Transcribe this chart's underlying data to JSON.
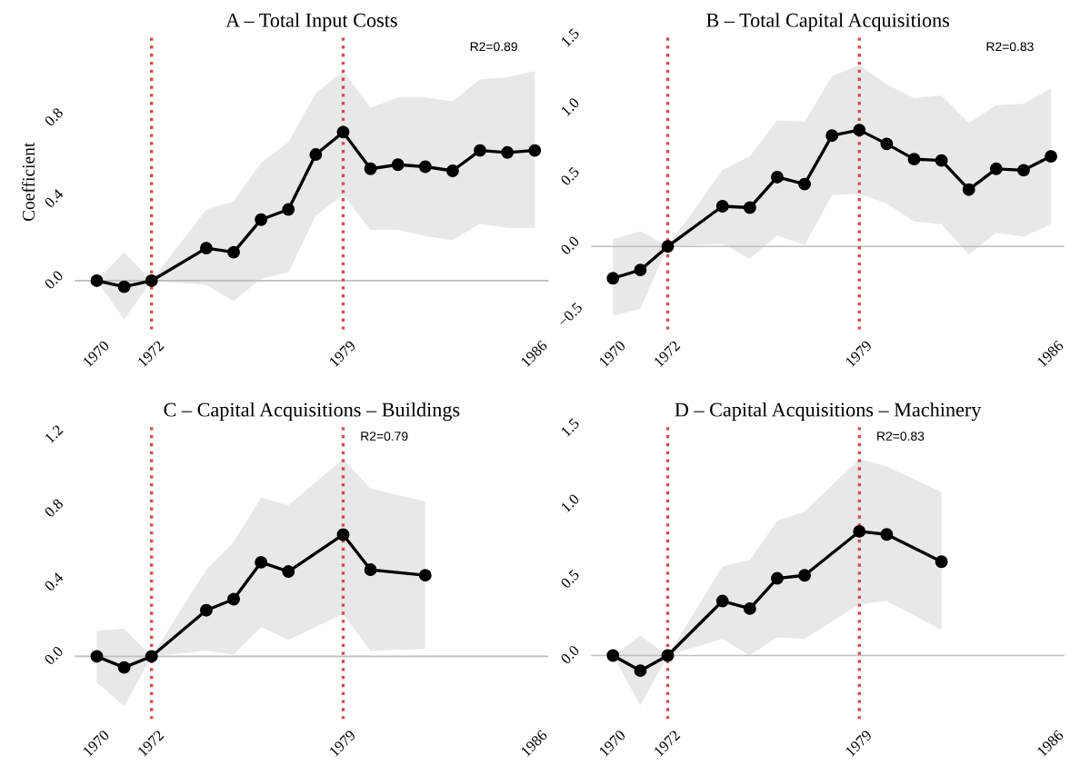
{
  "chart_data": [
    {
      "type": "line",
      "title": "A – Total Input Costs",
      "ylabel": "Coefficient",
      "annotations": [
        "R2=0.89"
      ],
      "marker": "circle",
      "line_style": "solid",
      "grid": false,
      "legend": false,
      "series": [
        {
          "color": "#000000",
          "x": [
            1970,
            1971,
            1972,
            1974,
            1975,
            1976,
            1977,
            1978,
            1979,
            1980,
            1981,
            1982,
            1983,
            1984,
            1985,
            1986
          ],
          "values": [
            0,
            -0.03,
            0,
            0.16,
            0.14,
            0.3,
            0.35,
            0.62,
            0.73,
            0.55,
            0.57,
            0.56,
            0.54,
            0.64,
            0.63,
            0.64
          ],
          "lower": [
            0,
            -0.19,
            0,
            -0.02,
            -0.1,
            0.01,
            0.04,
            0.32,
            0.42,
            0.25,
            0.25,
            0.22,
            0.2,
            0.28,
            0.26,
            0.26
          ],
          "upper": [
            0,
            0.14,
            0,
            0.35,
            0.39,
            0.58,
            0.68,
            0.92,
            1.03,
            0.85,
            0.9,
            0.9,
            0.88,
            0.99,
            1.0,
            1.03
          ]
        }
      ],
      "xlim": [
        1969.2,
        1986.5
      ],
      "xticks": [
        1970,
        1972,
        1979,
        1986
      ],
      "ylim": [
        -0.24,
        1.21
      ],
      "yticks": [
        {
          "value": 0,
          "label": "0.0"
        },
        {
          "value": 0.4,
          "label": "0.4"
        },
        {
          "value": 0.8,
          "label": "0.8"
        }
      ],
      "ref_lines": [
        {
          "axis": "x",
          "value": 1972,
          "color": "#d24b4b",
          "line_style": "dotted"
        },
        {
          "axis": "x",
          "value": 1979,
          "color": "#d24b4b",
          "line_style": "dotted"
        },
        {
          "axis": "y",
          "value": 0,
          "color": "#bdbdbd",
          "line_style": "solid"
        }
      ]
    },
    {
      "type": "line",
      "title": "B – Total Capital Acquisitions",
      "annotations": [
        "R2=0.83"
      ],
      "marker": "circle",
      "line_style": "solid",
      "grid": false,
      "legend": false,
      "series": [
        {
          "color": "#000000",
          "x": [
            1970,
            1971,
            1972,
            1974,
            1975,
            1976,
            1977,
            1978,
            1979,
            1980,
            1981,
            1982,
            1983,
            1984,
            1985,
            1986
          ],
          "values": [
            -0.23,
            -0.17,
            0,
            0.29,
            0.28,
            0.5,
            0.45,
            0.8,
            0.84,
            0.74,
            0.63,
            0.62,
            0.41,
            0.56,
            0.55,
            0.65
          ],
          "lower": [
            -0.5,
            -0.45,
            0,
            0.02,
            -0.09,
            0.08,
            0.01,
            0.37,
            0.38,
            0.31,
            0.18,
            0.16,
            -0.06,
            0.1,
            0.07,
            0.16
          ],
          "upper": [
            0.05,
            0.11,
            0,
            0.55,
            0.65,
            0.91,
            0.9,
            1.23,
            1.31,
            1.17,
            1.07,
            1.09,
            0.89,
            1.02,
            1.03,
            1.14
          ]
        }
      ],
      "xlim": [
        1969.2,
        1986.5
      ],
      "xticks": [
        1970,
        1972,
        1979,
        1986
      ],
      "ylim": [
        -0.6,
        1.53
      ],
      "yticks": [
        {
          "value": -0.5,
          "label": "−0.5"
        },
        {
          "value": 0,
          "label": "0.0"
        },
        {
          "value": 0.5,
          "label": "0.5"
        },
        {
          "value": 1,
          "label": "1.0"
        },
        {
          "value": 1.5,
          "label": "1.5"
        }
      ],
      "ref_lines": [
        {
          "axis": "x",
          "value": 1972,
          "color": "#d24b4b",
          "line_style": "dotted"
        },
        {
          "axis": "x",
          "value": 1979,
          "color": "#d24b4b",
          "line_style": "dotted"
        },
        {
          "axis": "y",
          "value": 0,
          "color": "#bdbdbd",
          "line_style": "solid"
        }
      ]
    },
    {
      "type": "line",
      "title": "C – Capital Acquisitions – Buildings",
      "annotations": [
        "R2=0.79"
      ],
      "marker": "circle",
      "line_style": "solid",
      "grid": false,
      "legend": false,
      "series": [
        {
          "color": "#000000",
          "x": [
            1970,
            1971,
            1972,
            1974,
            1975,
            1976,
            1977,
            1979,
            1980,
            1982
          ],
          "values": [
            0,
            -0.06,
            0,
            0.25,
            0.31,
            0.51,
            0.46,
            0.66,
            0.47,
            0.44
          ],
          "lower": [
            -0.14,
            -0.27,
            0,
            0.03,
            0.01,
            0.16,
            0.09,
            0.23,
            0.03,
            0.04
          ],
          "upper": [
            0.14,
            0.15,
            0,
            0.47,
            0.62,
            0.86,
            0.82,
            1.07,
            0.91,
            0.84
          ]
        }
      ],
      "xlim": [
        1969.2,
        1986.5
      ],
      "xticks": [
        1970,
        1972,
        1979,
        1986
      ],
      "ylim": [
        -0.34,
        1.26
      ],
      "yticks": [
        {
          "value": 0,
          "label": "0.0"
        },
        {
          "value": 0.4,
          "label": "0.4"
        },
        {
          "value": 0.8,
          "label": "0.8"
        },
        {
          "value": 1.2,
          "label": "1.2"
        }
      ],
      "ref_lines": [
        {
          "axis": "x",
          "value": 1972,
          "color": "#d24b4b",
          "line_style": "dotted"
        },
        {
          "axis": "x",
          "value": 1979,
          "color": "#d24b4b",
          "line_style": "dotted"
        },
        {
          "axis": "y",
          "value": 0,
          "color": "#bdbdbd",
          "line_style": "solid"
        }
      ]
    },
    {
      "type": "line",
      "title": "D – Capital Acquisitions – Machinery",
      "annotations": [
        "R2=0.83"
      ],
      "marker": "circle",
      "line_style": "solid",
      "grid": false,
      "legend": false,
      "series": [
        {
          "color": "#000000",
          "x": [
            1970,
            1971,
            1972,
            1974,
            1975,
            1976,
            1977,
            1979,
            1980,
            1982
          ],
          "values": [
            0,
            -0.1,
            0,
            0.36,
            0.31,
            0.51,
            0.53,
            0.82,
            0.8,
            0.62
          ],
          "lower": [
            0,
            -0.33,
            0,
            0.11,
            0,
            0.12,
            0.11,
            0.34,
            0.36,
            0.17
          ],
          "upper": [
            0,
            0.13,
            0,
            0.59,
            0.63,
            0.89,
            0.95,
            1.3,
            1.25,
            1.08
          ]
        }
      ],
      "xlim": [
        1969.2,
        1986.5
      ],
      "xticks": [
        1970,
        1972,
        1979,
        1986
      ],
      "ylim": [
        -0.42,
        1.53
      ],
      "yticks": [
        {
          "value": 0,
          "label": "0.0"
        },
        {
          "value": 0.5,
          "label": "0.5"
        },
        {
          "value": 1,
          "label": "1.0"
        },
        {
          "value": 1.5,
          "label": "1.5"
        }
      ],
      "ref_lines": [
        {
          "axis": "x",
          "value": 1972,
          "color": "#d24b4b",
          "line_style": "dotted"
        },
        {
          "axis": "x",
          "value": 1979,
          "color": "#d24b4b",
          "line_style": "dotted"
        },
        {
          "axis": "y",
          "value": 0,
          "color": "#bdbdbd",
          "line_style": "solid"
        }
      ]
    }
  ]
}
